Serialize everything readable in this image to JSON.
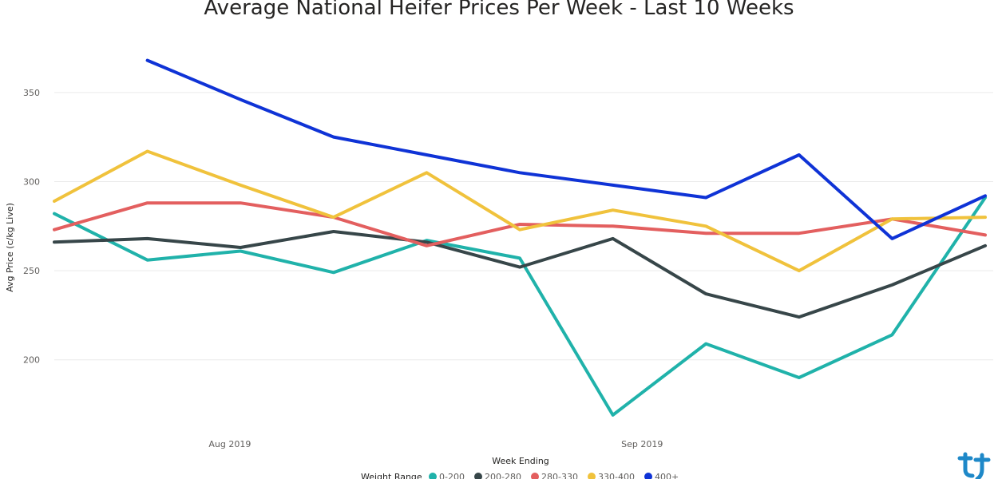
{
  "chart_data": {
    "type": "line",
    "title": "Average National Heifer Prices Per Week - Last 10 Weeks",
    "xlabel": "Week Ending",
    "ylabel": "Avg Price (c/kg Live)",
    "x_ticks": [
      "Aug 2019",
      "Sep 2019"
    ],
    "y_ticks": [
      200,
      250,
      300,
      350
    ],
    "ylim": [
      160,
      375
    ],
    "grid": true,
    "legend_title": "Weight Range",
    "legend_position": "bottom",
    "weeks": [
      "2019-07-20",
      "2019-07-27",
      "2019-08-03",
      "2019-08-10",
      "2019-08-17",
      "2019-08-24",
      "2019-08-31",
      "2019-09-07",
      "2019-09-14",
      "2019-09-21",
      "2019-09-28"
    ],
    "series": [
      {
        "name": "0-200",
        "color": "#20B2AA",
        "values": [
          282,
          256,
          261,
          249,
          267,
          257,
          169,
          209,
          190,
          214,
          291
        ]
      },
      {
        "name": "200-280",
        "color": "#374649",
        "values": [
          266,
          268,
          263,
          272,
          266,
          252,
          268,
          237,
          224,
          242,
          264
        ]
      },
      {
        "name": "280-330",
        "color": "#E35F5F",
        "values": [
          273,
          288,
          288,
          280,
          264,
          276,
          275,
          271,
          271,
          279,
          270
        ]
      },
      {
        "name": "330-400",
        "color": "#F0C23C",
        "values": [
          289,
          317,
          298,
          280,
          305,
          273,
          284,
          275,
          250,
          279,
          280
        ]
      },
      {
        "name": "400+",
        "color": "#0F33D6",
        "values": [
          null,
          368,
          346,
          325,
          315,
          305,
          298,
          291,
          315,
          268,
          292
        ]
      }
    ]
  },
  "logo": {
    "icon": "brand-logo-icon",
    "color": "#1E88C8"
  }
}
